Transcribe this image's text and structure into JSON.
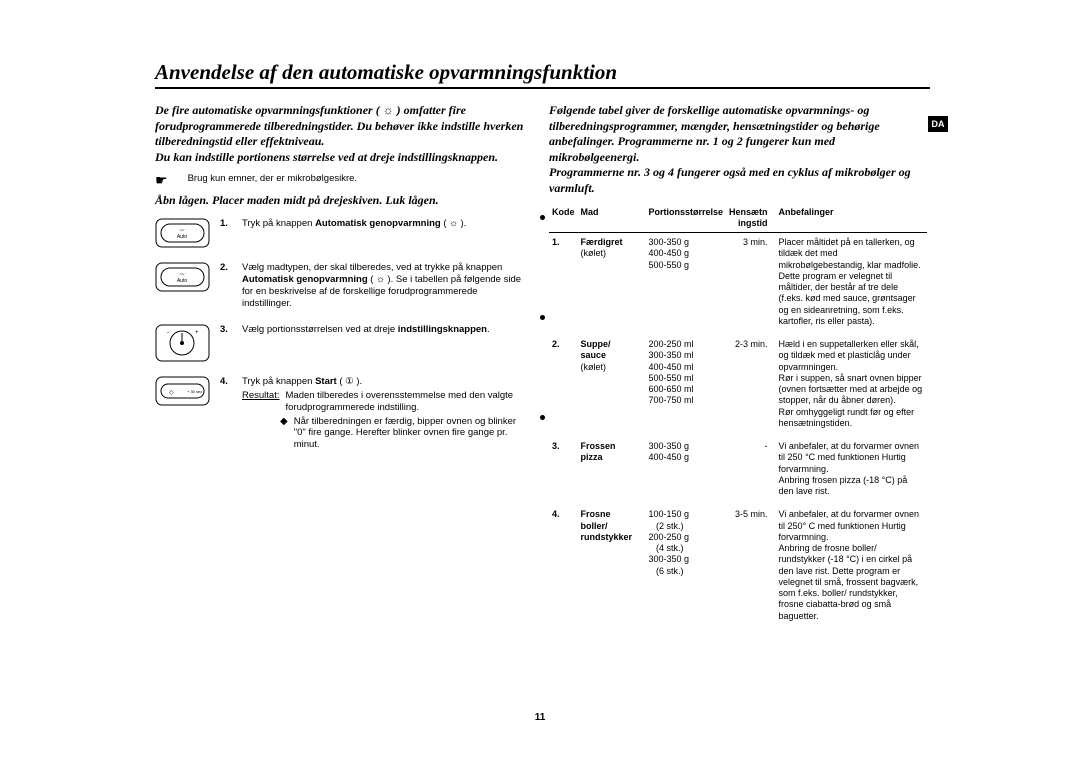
{
  "lang_tab": "DA",
  "page_number": "11",
  "title": "Anvendelse af den automatiske opvarmningsfunktion",
  "left": {
    "intro": "De fire automatiske opvarmningsfunktioner (  ☼  ) omfatter fire forudprogrammerede tilberedningstider. Du behøver ikke indstille hverken tilberedningstid eller effektniveau.\nDu kan indstille portionens størrelse ved at dreje indstillingsknappen.",
    "note": "Brug kun emner, der er mikrobølgesikre.",
    "sub_intro": "Åbn lågen. Placer maden midt på drejeskiven. Luk lågen.",
    "steps": [
      {
        "num": "1.",
        "text": "Tryk på knappen <b>Automatisk genopvarmning</b> ( ☼ )."
      },
      {
        "num": "2.",
        "text": "Vælg madtypen, der skal tilberedes, ved at trykke på knappen <b>Automatisk genopvarmning</b> ( ☼ ). Se i tabellen på følgende side for en beskrivelse af de forskellige forudprogrammerede indstillinger."
      },
      {
        "num": "3.",
        "text": "Vælg portionsstørrelsen ved at dreje <b>indstillingsknappen</b>."
      },
      {
        "num": "4.",
        "text": "Tryk på knappen <b>Start</b> ( ① ).",
        "result_label": "Resultat:",
        "result_text": "Maden tilberedes i overensstemmelse med den valgte forudprogrammerede indstilling.",
        "bullet": "Når tilberedningen er færdig, bipper ovnen og blinker \"0\" fire gange. Herefter blinker ovnen fire gange pr. minut."
      }
    ]
  },
  "right": {
    "intro": "Følgende tabel giver de forskellige automatiske opvarmnings- og tilberedningsprogrammer, mængder, hensætningstider og behørige anbefalinger. Programmerne nr. 1 og 2 fungerer kun med mikrobølgeenergi.\nProgrammerne nr. 3 og 4 fungerer også med en cyklus af mikrobølger og varmluft.",
    "headers": {
      "code": "Kode",
      "food": "Mad",
      "portion": "Portionsstørrelse",
      "rest": "Hensætn\ningstid",
      "rec": "Anbefalinger"
    },
    "rows": [
      {
        "code": "1.",
        "food": "<b>Færdigret</b>\n(kølet)",
        "portion": "300-350 g\n400-450 g\n500-550 g",
        "rest": "3 min.",
        "rec": "Placer måltidet på en tallerken, og tildæk det med mikrobølgebestandig, klar madfolie. Dette program er velegnet til måltider, der består af tre dele (f.eks. kød med sauce, grøntsager og en sideanretning, som f.eks. kartofler, ris eller pasta)."
      },
      {
        "code": "2.",
        "food": "<b>Suppe/\nsauce</b>\n(kølet)",
        "portion": "200-250 ml\n300-350 ml\n400-450 ml\n500-550 ml\n600-650 ml\n700-750 ml",
        "rest": "2-3 min.",
        "rec": "Hæld i en suppetallerken eller skål, og tildæk med et plasticlåg under opvarmningen.\nRør i suppen, så snart ovnen bipper (ovnen fortsætter med at arbejde og stopper, når du åbner døren).\nRør omhyggeligt rundt før og efter hensætningstiden."
      },
      {
        "code": "3.",
        "food": "<b>Frossen\npizza</b>",
        "portion": "300-350 g\n400-450 g",
        "rest": "-",
        "rec": "Vi anbefaler, at du forvarmer ovnen til 250 °C med funktionen Hurtig forvarmning.\nAnbring frosen pizza (-18 °C) på den lave rist."
      },
      {
        "code": "4.",
        "food": "<b>Frosne\nboller/\nrundstykker</b>",
        "portion": "100-150 g\n   (2 stk.)\n200-250 g\n   (4 stk.)\n300-350 g\n   (6 stk.)",
        "rest": "3-5 min.",
        "rec": "Vi anbefaler, at du forvarmer ovnen til 250° C med funktionen Hurtig forvarmning.\nAnbring de frosne boller/ rundstykker (-18 °C) i en cirkel på den lave rist. Dette program er velegnet til små, frossent bagværk, som f.eks. boller/ rundstykker, frosne ciabatta-brød og små baguetter."
      }
    ]
  }
}
